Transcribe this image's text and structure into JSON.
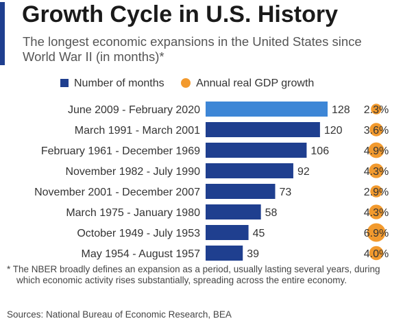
{
  "header": {
    "title": "Growth Cycle in U.S. History",
    "subtitle": "The longest economic expansions in the United States since World War II (in months)*"
  },
  "legend": {
    "bars_label": "Number of months",
    "dots_label": "Annual real GDP growth"
  },
  "colors": {
    "accent": "#1f3f8f",
    "bar": "#1f3f8f",
    "bar_highlight": "#3d86d6",
    "dot": "#f29a2e"
  },
  "chart_data": {
    "type": "bar",
    "orientation": "horizontal",
    "categories": [
      "June 2009 - February 2020",
      "March 1991 - March 2001",
      "February 1961 - December 1969",
      "November 1982 - July 1990",
      "November 2001 - December 2007",
      "March 1975 - January 1980",
      "October 1949 - July 1953",
      "May 1954 - August 1957"
    ],
    "series": [
      {
        "name": "Number of months",
        "values": [
          128,
          120,
          106,
          92,
          73,
          58,
          45,
          39
        ]
      },
      {
        "name": "Annual real GDP growth",
        "values": [
          2.3,
          3.6,
          4.9,
          4.3,
          2.9,
          4.3,
          6.9,
          4.0
        ],
        "value_labels": [
          "2.3%",
          "3.6%",
          "4.9%",
          "4.3%",
          "2.9%",
          "4.3%",
          "6.9%",
          "4.0%"
        ],
        "marker": "bubble sized by value"
      }
    ],
    "highlighted_category": "June 2009 - February 2020"
  },
  "footnote": "* The NBER broadly defines an expansion as a period, usually lasting several years, during which economic activity rises substantially, spreading across the entire economy.",
  "sources": "Sources: National Bureau of Economic Research, BEA"
}
